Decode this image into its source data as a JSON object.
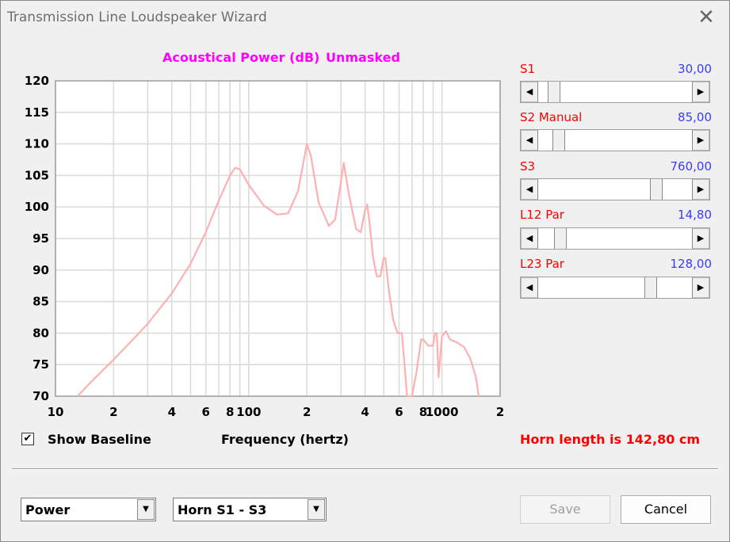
{
  "window": {
    "title": "Transmission Line Loudspeaker Wizard",
    "close_glyph": "✕"
  },
  "plot": {
    "title_left": "Acoustical Power (dB)",
    "title_right": "Unmasked",
    "xaxis_title": "Frequency (hertz)",
    "show_baseline": {
      "label": "Show Baseline",
      "checked": true,
      "check_glyph": "✔"
    }
  },
  "sliders": [
    {
      "label": "S1",
      "value": "30,00",
      "position": 0.07
    },
    {
      "label": "S2  Manual",
      "value": "85,00",
      "position": 0.1
    },
    {
      "label": "S3",
      "value": "760,00",
      "position": 0.79
    },
    {
      "label": "L12  Par",
      "value": "14,80",
      "position": 0.11
    },
    {
      "label": "L23  Par",
      "value": "128,00",
      "position": 0.75
    }
  ],
  "status": {
    "horn_length": "Horn length is 142,80 cm"
  },
  "controls": {
    "mode_combo": "Power",
    "horn_combo": "Horn S1 - S3",
    "save_label": "Save",
    "cancel_label": "Cancel"
  },
  "icons": {
    "left_arrow": "◀",
    "right_arrow": "▶",
    "dropdown": "▼"
  },
  "colors": {
    "curve": "#ffb0b0",
    "title": "#ff00ff",
    "label_red": "#ff0000",
    "value_blue": "#3a3aff"
  },
  "chart_data": {
    "type": "line",
    "xscale": "log",
    "xlim": [
      10,
      2000
    ],
    "ylim": [
      70,
      120
    ],
    "yticks": [
      120,
      115,
      110,
      105,
      100,
      95,
      90,
      85,
      80,
      75,
      70
    ],
    "xtick_labels": [
      {
        "value": 10,
        "label": "10"
      },
      {
        "value": 20,
        "label": "2"
      },
      {
        "value": 40,
        "label": "4"
      },
      {
        "value": 60,
        "label": "6"
      },
      {
        "value": 80,
        "label": "8"
      },
      {
        "value": 100,
        "label": "100"
      },
      {
        "value": 200,
        "label": "2"
      },
      {
        "value": 400,
        "label": "4"
      },
      {
        "value": 600,
        "label": "6"
      },
      {
        "value": 800,
        "label": "8"
      },
      {
        "value": 1000,
        "label": "1000"
      },
      {
        "value": 2000,
        "label": "2"
      }
    ],
    "grid": true,
    "series": [
      {
        "color": "#ffb0b0",
        "x": [
          13,
          15,
          20,
          25,
          30,
          40,
          50,
          60,
          70,
          80,
          85,
          90,
          100,
          120,
          140,
          160,
          180,
          200,
          210,
          230,
          260,
          280,
          300,
          310,
          330,
          360,
          380,
          400,
          410,
          420,
          440,
          460,
          480,
          500,
          510,
          530,
          560,
          590,
          620,
          640,
          660,
          700,
          740,
          780,
          800,
          850,
          900,
          920,
          940,
          960,
          1000,
          1050,
          1100,
          1200,
          1300,
          1400,
          1500,
          1550
        ],
        "y": [
          70,
          72,
          75.8,
          78.9,
          81.5,
          86.3,
          91,
          96,
          101,
          105,
          106.2,
          106,
          103.5,
          100.2,
          98.8,
          99,
          102.5,
          110,
          108,
          100.7,
          97,
          98,
          104,
          107,
          102,
          96.5,
          96,
          99.5,
          100.4,
          98,
          92,
          89,
          89,
          92,
          91.8,
          87,
          82,
          80,
          80,
          75,
          70,
          70,
          74,
          79,
          79,
          78,
          78,
          80,
          80,
          73,
          79.5,
          80.3,
          79,
          78.5,
          77.8,
          76,
          73,
          70
        ]
      }
    ]
  }
}
